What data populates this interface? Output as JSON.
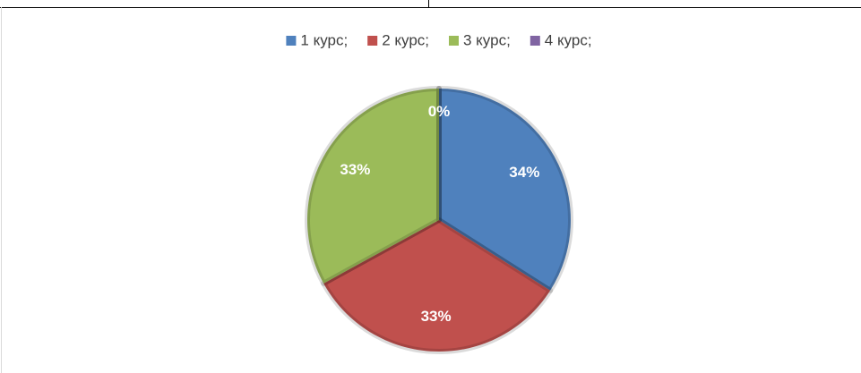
{
  "chart_data": {
    "type": "pie",
    "categories": [
      "1 курс;",
      "2 курс;",
      "3 курс;",
      "4 курс;"
    ],
    "values": [
      34,
      33,
      33,
      0
    ],
    "value_labels": [
      "34%",
      "33%",
      "33%",
      "0%"
    ],
    "colors": [
      "#4f81bd",
      "#c0504d",
      "#9bbb59",
      "#8064a2"
    ],
    "legend": "top"
  }
}
